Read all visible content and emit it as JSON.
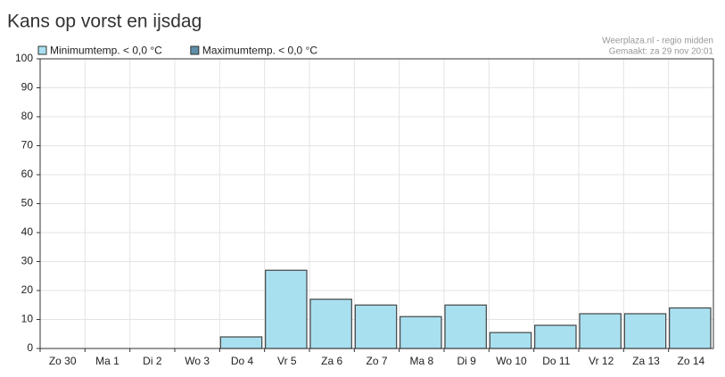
{
  "chart_data": {
    "type": "bar",
    "title": "Kans op vorst en ijsdag",
    "attribution": [
      "Weerplaza.nl - regio midden",
      "Gemaakt: za 29 nov 20:01"
    ],
    "categories": [
      "Zo 30",
      "Ma 1",
      "Di 2",
      "Wo 3",
      "Do 4",
      "Vr 5",
      "Za 6",
      "Zo 7",
      "Ma 8",
      "Di 9",
      "Wo 10",
      "Do 11",
      "Vr 12",
      "Za 13",
      "Zo 14"
    ],
    "series": [
      {
        "name": "Minimumtemp. < 0,0 °C",
        "color": "#a8e0f0",
        "values": [
          0,
          0,
          0,
          0,
          4,
          27,
          17,
          15,
          11,
          15,
          5.5,
          8,
          12,
          12,
          14
        ]
      },
      {
        "name": "Maximumtemp. < 0,0 °C",
        "color": "#5f8fa8",
        "values": [
          0,
          0,
          0,
          0,
          0,
          0,
          0,
          0,
          0,
          0,
          0,
          0,
          0,
          0,
          0
        ]
      }
    ],
    "ylim": [
      0,
      100
    ],
    "yticks": [
      0,
      10,
      20,
      30,
      40,
      50,
      60,
      70,
      80,
      90,
      100
    ],
    "grid": true
  }
}
